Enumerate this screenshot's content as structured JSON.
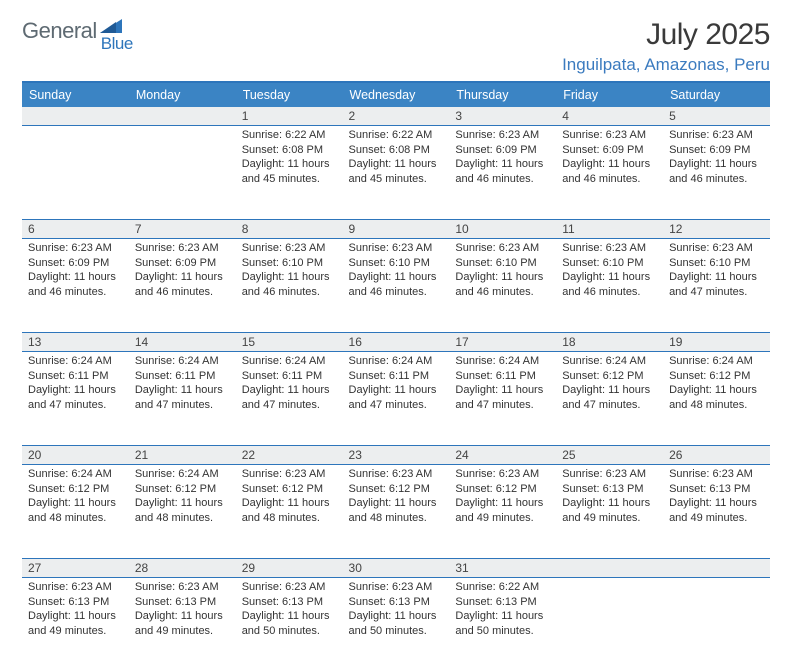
{
  "logo": {
    "text1": "General",
    "text2": "Blue",
    "triangle_color": "#2d75bb"
  },
  "title": "July 2025",
  "location": "Inguilpata, Amazonas, Peru",
  "colors": {
    "header_bg": "#3b84c4",
    "header_border": "#2d75bb",
    "daynum_bg": "#eceeef",
    "text": "#333333",
    "location_color": "#3b7bbf"
  },
  "daysOfWeek": [
    "Sunday",
    "Monday",
    "Tuesday",
    "Wednesday",
    "Thursday",
    "Friday",
    "Saturday"
  ],
  "startOffset": 2,
  "days": [
    {
      "n": 1,
      "sr": "6:22 AM",
      "ss": "6:08 PM",
      "dl": "11 hours and 45 minutes."
    },
    {
      "n": 2,
      "sr": "6:22 AM",
      "ss": "6:08 PM",
      "dl": "11 hours and 45 minutes."
    },
    {
      "n": 3,
      "sr": "6:23 AM",
      "ss": "6:09 PM",
      "dl": "11 hours and 46 minutes."
    },
    {
      "n": 4,
      "sr": "6:23 AM",
      "ss": "6:09 PM",
      "dl": "11 hours and 46 minutes."
    },
    {
      "n": 5,
      "sr": "6:23 AM",
      "ss": "6:09 PM",
      "dl": "11 hours and 46 minutes."
    },
    {
      "n": 6,
      "sr": "6:23 AM",
      "ss": "6:09 PM",
      "dl": "11 hours and 46 minutes."
    },
    {
      "n": 7,
      "sr": "6:23 AM",
      "ss": "6:09 PM",
      "dl": "11 hours and 46 minutes."
    },
    {
      "n": 8,
      "sr": "6:23 AM",
      "ss": "6:10 PM",
      "dl": "11 hours and 46 minutes."
    },
    {
      "n": 9,
      "sr": "6:23 AM",
      "ss": "6:10 PM",
      "dl": "11 hours and 46 minutes."
    },
    {
      "n": 10,
      "sr": "6:23 AM",
      "ss": "6:10 PM",
      "dl": "11 hours and 46 minutes."
    },
    {
      "n": 11,
      "sr": "6:23 AM",
      "ss": "6:10 PM",
      "dl": "11 hours and 46 minutes."
    },
    {
      "n": 12,
      "sr": "6:23 AM",
      "ss": "6:10 PM",
      "dl": "11 hours and 47 minutes."
    },
    {
      "n": 13,
      "sr": "6:24 AM",
      "ss": "6:11 PM",
      "dl": "11 hours and 47 minutes."
    },
    {
      "n": 14,
      "sr": "6:24 AM",
      "ss": "6:11 PM",
      "dl": "11 hours and 47 minutes."
    },
    {
      "n": 15,
      "sr": "6:24 AM",
      "ss": "6:11 PM",
      "dl": "11 hours and 47 minutes."
    },
    {
      "n": 16,
      "sr": "6:24 AM",
      "ss": "6:11 PM",
      "dl": "11 hours and 47 minutes."
    },
    {
      "n": 17,
      "sr": "6:24 AM",
      "ss": "6:11 PM",
      "dl": "11 hours and 47 minutes."
    },
    {
      "n": 18,
      "sr": "6:24 AM",
      "ss": "6:12 PM",
      "dl": "11 hours and 47 minutes."
    },
    {
      "n": 19,
      "sr": "6:24 AM",
      "ss": "6:12 PM",
      "dl": "11 hours and 48 minutes."
    },
    {
      "n": 20,
      "sr": "6:24 AM",
      "ss": "6:12 PM",
      "dl": "11 hours and 48 minutes."
    },
    {
      "n": 21,
      "sr": "6:24 AM",
      "ss": "6:12 PM",
      "dl": "11 hours and 48 minutes."
    },
    {
      "n": 22,
      "sr": "6:23 AM",
      "ss": "6:12 PM",
      "dl": "11 hours and 48 minutes."
    },
    {
      "n": 23,
      "sr": "6:23 AM",
      "ss": "6:12 PM",
      "dl": "11 hours and 48 minutes."
    },
    {
      "n": 24,
      "sr": "6:23 AM",
      "ss": "6:12 PM",
      "dl": "11 hours and 49 minutes."
    },
    {
      "n": 25,
      "sr": "6:23 AM",
      "ss": "6:13 PM",
      "dl": "11 hours and 49 minutes."
    },
    {
      "n": 26,
      "sr": "6:23 AM",
      "ss": "6:13 PM",
      "dl": "11 hours and 49 minutes."
    },
    {
      "n": 27,
      "sr": "6:23 AM",
      "ss": "6:13 PM",
      "dl": "11 hours and 49 minutes."
    },
    {
      "n": 28,
      "sr": "6:23 AM",
      "ss": "6:13 PM",
      "dl": "11 hours and 49 minutes."
    },
    {
      "n": 29,
      "sr": "6:23 AM",
      "ss": "6:13 PM",
      "dl": "11 hours and 50 minutes."
    },
    {
      "n": 30,
      "sr": "6:23 AM",
      "ss": "6:13 PM",
      "dl": "11 hours and 50 minutes."
    },
    {
      "n": 31,
      "sr": "6:22 AM",
      "ss": "6:13 PM",
      "dl": "11 hours and 50 minutes."
    }
  ],
  "labels": {
    "sunrise": "Sunrise:",
    "sunset": "Sunset:",
    "daylight": "Daylight:"
  }
}
